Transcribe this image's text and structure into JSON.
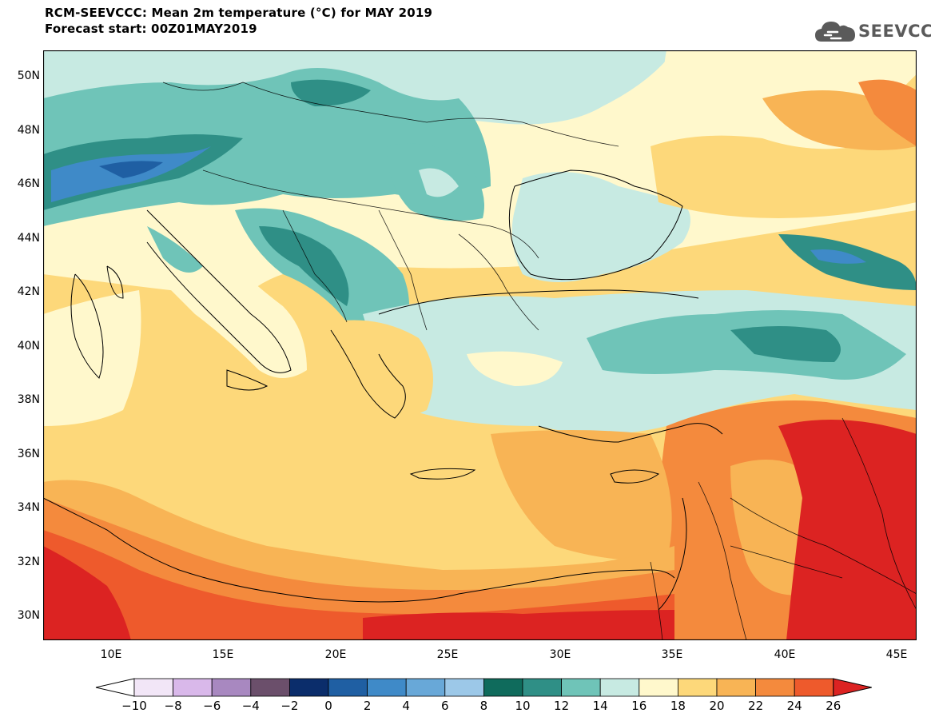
{
  "header": {
    "title": "RCM-SEEVCCC: Mean 2m temperature (°C) for MAY 2019",
    "subtitle": "Forecast start: 00Z01MAY2019"
  },
  "logo": {
    "text": "SEEVCCC",
    "icon": "cloud-icon"
  },
  "map": {
    "lat_labels": [
      "50N",
      "48N",
      "46N",
      "44N",
      "42N",
      "40N",
      "38N",
      "36N",
      "34N",
      "32N",
      "30N"
    ],
    "lon_labels": [
      "10E",
      "15E",
      "20E",
      "25E",
      "30E",
      "35E",
      "40E",
      "45E"
    ],
    "lat_range": [
      29,
      51
    ],
    "lon_range": [
      7,
      46
    ],
    "colors": {
      "cold_minus10": "#f2e6f7",
      "cold_minus8": "#d9b8ea",
      "cold_minus6": "#a888c0",
      "cold_minus4": "#6b4f6b",
      "cold_minus2": "#0b2d6b",
      "c0": "#1f5fa3",
      "c2": "#3f8ac8",
      "c4": "#68a8d8",
      "c6": "#9cc8e8",
      "c8": "#0f6b5c",
      "c10": "#2f8f86",
      "c12": "#6fc4b8",
      "c14": "#c7eae2",
      "c16": "#fff8cc",
      "c18": "#fdd87a",
      "c20": "#f8b455",
      "c22": "#f48a3d",
      "c24": "#ee5a2c",
      "c26": "#dc2322",
      "sea_mediterranean": "#fdd87a",
      "sea_black": "#c7eae2"
    }
  },
  "colorbar": {
    "labels": [
      "−10",
      "−8",
      "−6",
      "−4",
      "−2",
      "0",
      "2",
      "4",
      "6",
      "8",
      "10",
      "12",
      "14",
      "16",
      "18",
      "20",
      "22",
      "24",
      "26"
    ],
    "colors": [
      "#f2e6f7",
      "#d9b8ea",
      "#a888c0",
      "#6b4f6b",
      "#0b2d6b",
      "#1f5fa3",
      "#3f8ac8",
      "#68a8d8",
      "#9cc8e8",
      "#0f6b5c",
      "#2f8f86",
      "#6fc4b8",
      "#c7eae2",
      "#fff8cc",
      "#fdd87a",
      "#f8b455",
      "#f48a3d",
      "#ee5a2c"
    ],
    "under_color": "#ffffff",
    "over_color": "#dc2322"
  }
}
